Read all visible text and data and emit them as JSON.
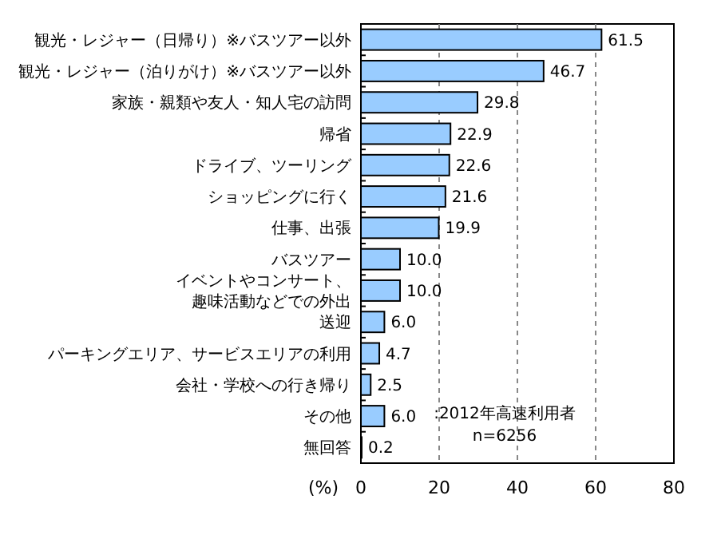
{
  "chart_data": {
    "type": "bar",
    "orientation": "horizontal",
    "xlabel": "(%)",
    "categories": [
      "観光・レジャー（日帰り）※バスツアー以外",
      "観光・レジャー（泊りがけ）※バスツアー以外",
      "家族・親類や友人・知人宅の訪問",
      "帰省",
      "ドライブ、ツーリング",
      "ショッピングに行く",
      "仕事、出張",
      "バスツアー",
      "イベントやコンサート、趣味活動などでの外出",
      "送迎",
      "パーキングエリア、サービスエリアの利用",
      "会社・学校への行き帰り",
      "その他",
      "無回答"
    ],
    "values": [
      61.5,
      46.7,
      29.8,
      22.9,
      22.6,
      21.6,
      19.9,
      10.0,
      10.0,
      6.0,
      4.7,
      2.5,
      6.0,
      0.2
    ],
    "value_labels": [
      "61.5",
      "46.7",
      "29.8",
      "22.9",
      "22.6",
      "21.6",
      "19.9",
      "10.0",
      "10.0",
      "6.0",
      "4.7",
      "2.5",
      "6.0",
      "0.2"
    ],
    "color": "#99ccff",
    "xlim": [
      0,
      80
    ],
    "xticks": [
      0,
      20,
      40,
      60,
      80
    ],
    "grid": "x",
    "annotations": [
      ":2012年高速利用者",
      "n=6256"
    ]
  }
}
